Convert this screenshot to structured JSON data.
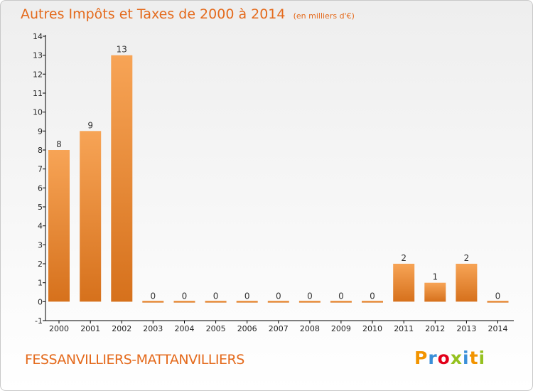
{
  "header": {
    "title": "Autres Impôts et Taxes de 2000 à 2014",
    "unit": "(en milliers d'€)"
  },
  "footer": {
    "commune": "FESSANVILLIERS-MATTANVILLIERS",
    "logo_letters": [
      "P",
      "r",
      "o",
      "x",
      "i",
      "t",
      "i"
    ],
    "logo_colors": [
      "#f29400",
      "#3a8fd8",
      "#e2001a",
      "#95c11f",
      "#3a8fd8",
      "#f29400",
      "#95c11f"
    ]
  },
  "colors": {
    "title": "#e46a1c",
    "bar_top": "#f7a456",
    "bar_bottom": "#d6711c",
    "axis": "#000000"
  },
  "chart_data": {
    "type": "bar",
    "title": "Autres Impôts et Taxes de 2000 à 2014",
    "subtitle": "(en milliers d'€)",
    "xlabel": "",
    "ylabel": "",
    "categories": [
      "2000",
      "2001",
      "2002",
      "2003",
      "2004",
      "2005",
      "2006",
      "2007",
      "2008",
      "2009",
      "2010",
      "2011",
      "2012",
      "2013",
      "2014"
    ],
    "values": [
      8,
      9,
      13,
      0,
      0,
      0,
      0,
      0,
      0,
      0,
      0,
      2,
      1,
      2,
      0
    ],
    "data_labels": [
      "8",
      "9",
      "13",
      "0",
      "0",
      "0",
      "0",
      "0",
      "0",
      "0",
      "0",
      "2",
      "1",
      "2",
      "0"
    ],
    "ylim": [
      -1,
      14
    ],
    "yticks": [
      -1,
      0,
      1,
      2,
      3,
      4,
      5,
      6,
      7,
      8,
      9,
      10,
      11,
      12,
      13,
      14
    ],
    "ytick_labels": [
      "-1",
      "0",
      "1",
      "2",
      "3",
      "4",
      "5",
      "6",
      "7",
      "8",
      "9",
      "10",
      "11",
      "12",
      "13",
      "14"
    ],
    "grid": false,
    "legend": "none"
  }
}
